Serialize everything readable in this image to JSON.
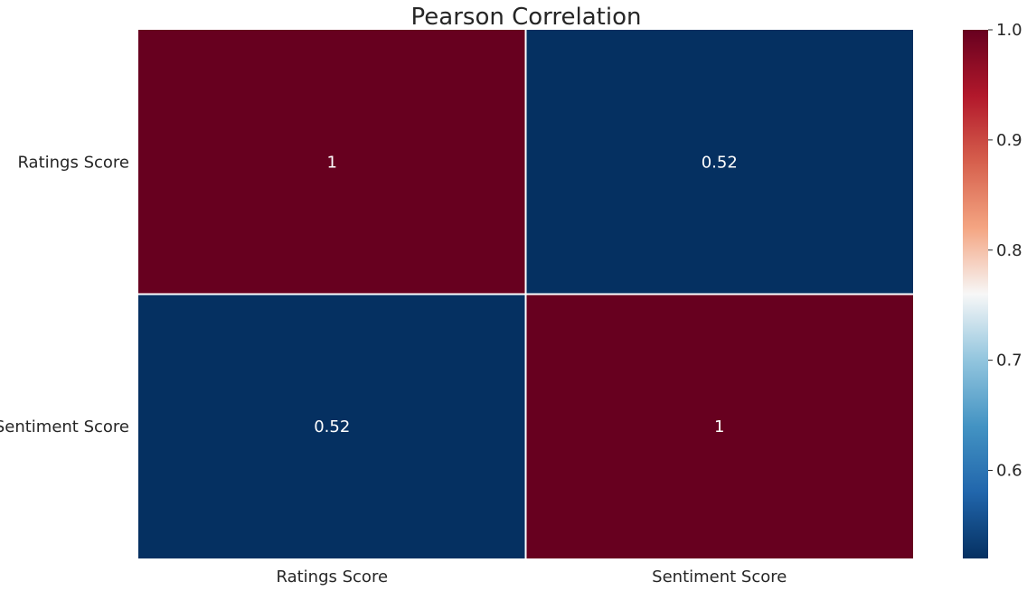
{
  "chart_data": {
    "type": "heatmap",
    "title": "Pearson Correlation",
    "x_categories": [
      "Ratings Score",
      "Sentiment Score"
    ],
    "y_categories": [
      "Ratings Score",
      "Sentiment Score"
    ],
    "values": [
      [
        1.0,
        0.52
      ],
      [
        0.52,
        1.0
      ]
    ],
    "annotations": [
      [
        "1",
        "0.52"
      ],
      [
        "0.52",
        "1"
      ]
    ],
    "colorbar": {
      "colormap": "RdBu_r",
      "range": [
        0.52,
        1.0
      ],
      "ticks": [
        "0.6",
        "0.7",
        "0.8",
        "0.9",
        "1.0"
      ],
      "tick_values": [
        0.6,
        0.7,
        0.8,
        0.9,
        1.0
      ]
    },
    "colors": {
      "low": "#053061",
      "high": "#67001f",
      "grid_line": "#ffffff"
    }
  }
}
